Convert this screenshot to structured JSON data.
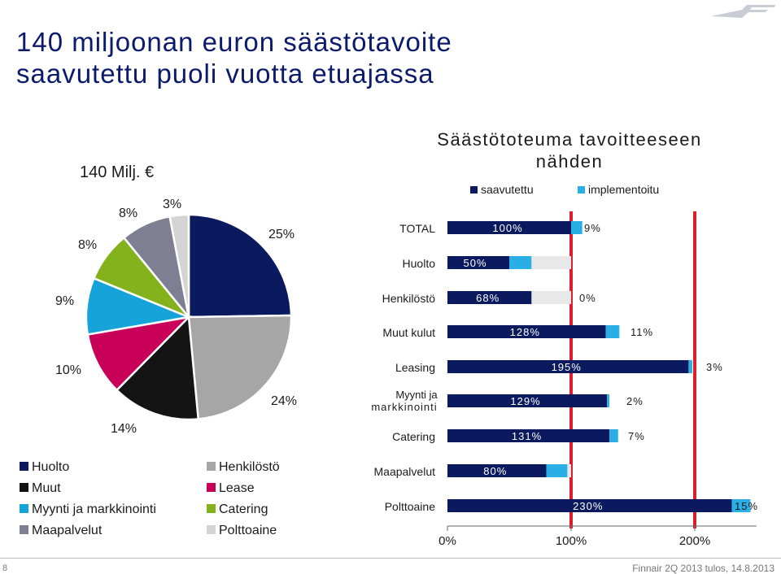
{
  "header": {
    "title_line1": "140 miljoonan euron säästötavoite",
    "title_line2": "saavutettu puoli vuotta etuajassa"
  },
  "colors": {
    "navy": "#0b1a5e",
    "cyan": "#2aaee6",
    "red": "#e01d2b",
    "gray_bar": "#e8e8e8"
  },
  "footer": {
    "page": "8",
    "text": "Finnair 2Q 2013 tulos, 14.8.2013"
  },
  "chart_data": [
    {
      "type": "pie",
      "title": "140 Milj. €",
      "slices": [
        {
          "name": "Huolto",
          "value": 25,
          "label": "25%",
          "color": "#0b1a5e"
        },
        {
          "name": "Henkilöstö",
          "value": 24,
          "label": "24%",
          "color": "#a6a6a6"
        },
        {
          "name": "Muut",
          "value": 14,
          "label": "14%",
          "color": "#141414"
        },
        {
          "name": "Lease",
          "value": 10,
          "label": "10%",
          "color": "#c8005a"
        },
        {
          "name": "Myynti ja markkinointi",
          "value": 9,
          "label": "9%",
          "color": "#16a3d9"
        },
        {
          "name": "Catering",
          "value": 8,
          "label": "8%",
          "color": "#84b21c"
        },
        {
          "name": "Maapalvelut",
          "value": 8,
          "label": "8%",
          "color": "#7f7f93"
        },
        {
          "name": "Polttoaine",
          "value": 3,
          "label": "3%",
          "color": "#d4d4d4"
        }
      ],
      "legend": {
        "left": [
          "Huolto",
          "Muut",
          "Myynti ja markkinointi",
          "Maapalvelut"
        ],
        "right": [
          "Henkilöstö",
          "Lease",
          "Catering",
          "Polttoaine"
        ]
      }
    },
    {
      "type": "bar",
      "orientation": "horizontal",
      "stacked": true,
      "title": "Säästötoteuma tavoitteeseen nähden",
      "legend_entries": [
        "saavutettu",
        "implementoitu"
      ],
      "categories": [
        "TOTAL",
        "Huolto",
        "Henkilöstö",
        "Muut kulut",
        "Leasing",
        "Myynti ja markkinointi",
        "Catering",
        "Maapalvelut",
        "Polttoaine"
      ],
      "series": [
        {
          "name": "saavutettu",
          "values": [
            100,
            50,
            68,
            128,
            195,
            129,
            131,
            80,
            230
          ],
          "labels": [
            "100%",
            "50%",
            "68%",
            "128%",
            "195%",
            "129%",
            "131%",
            "80%",
            "230%"
          ]
        },
        {
          "name": "implementoitu",
          "values": [
            9,
            18,
            0,
            11,
            3,
            2,
            7,
            17,
            15
          ],
          "labels": [
            "9%",
            "",
            "0%",
            "11%",
            "3%",
            "2%",
            "7%",
            "",
            "15%"
          ]
        },
        {
          "values": [
            0,
            32,
            32,
            0,
            0,
            0,
            0,
            3,
            0
          ]
        }
      ],
      "xticks": [
        "0%",
        "100%",
        "200%"
      ],
      "xlim": [
        0,
        250
      ],
      "target_line": 100
    }
  ]
}
